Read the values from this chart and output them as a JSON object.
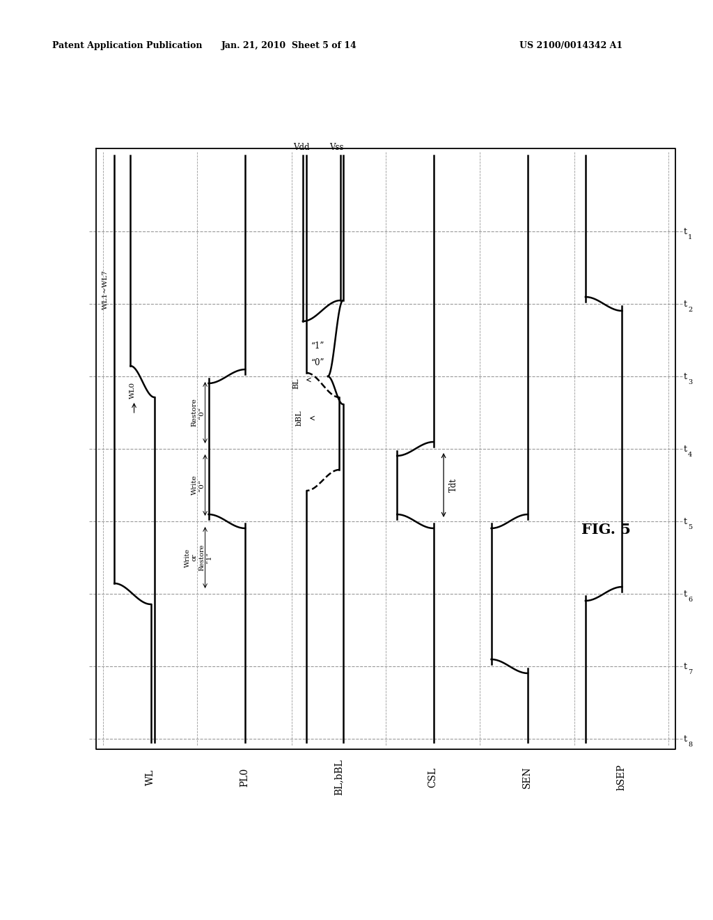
{
  "patent_header_left": "Patent Application Publication",
  "patent_header_mid": "Jan. 21, 2010  Sheet 5 of 14",
  "patent_header_right": "US 2100/0014342 A1",
  "fig_label": "FIG. 5",
  "signal_labels": [
    "WL",
    "PL0",
    "BL,bBL",
    "CSL",
    "SEN",
    "bSEP"
  ],
  "time_labels": [
    "t1",
    "t2",
    "t3",
    "t4",
    "t5",
    "t6",
    "t7",
    "t8"
  ],
  "background_color": "#ffffff",
  "line_color": "#000000",
  "grid_color": "#999999"
}
